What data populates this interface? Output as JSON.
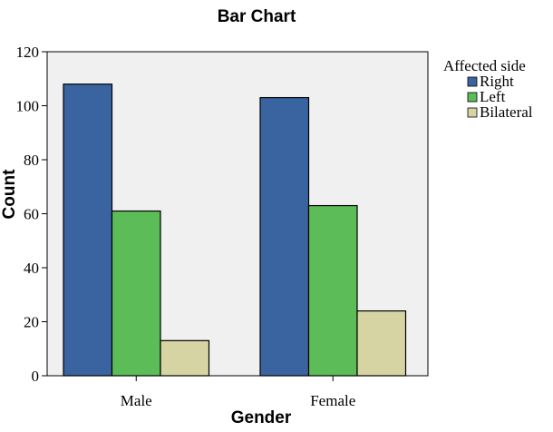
{
  "chart_data": {
    "type": "bar",
    "title": "Bar Chart",
    "xlabel": "Gender",
    "ylabel": "Count",
    "categories": [
      "Male",
      "Female"
    ],
    "series": [
      {
        "name": "Right",
        "values": [
          108,
          103
        ],
        "color": "#3a64a0"
      },
      {
        "name": "Left",
        "values": [
          61,
          63
        ],
        "color": "#5cbc58"
      },
      {
        "name": "Bilateral",
        "values": [
          13,
          24
        ],
        "color": "#d6d4a2"
      }
    ],
    "ylim": [
      0,
      120
    ],
    "yticks": [
      0,
      20,
      40,
      60,
      80,
      100,
      120
    ],
    "legend_title": "Affected side",
    "legend_position": "right",
    "plot_background": "#f0f0f0",
    "grid": false
  }
}
